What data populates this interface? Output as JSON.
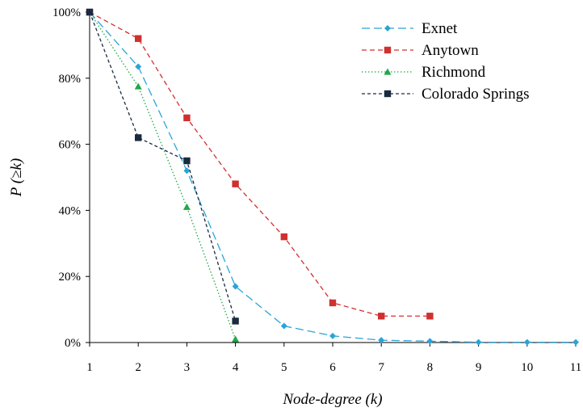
{
  "chart_data": {
    "type": "line",
    "xlabel": "Node-degree (k)",
    "ylabel": "P (≥k)",
    "xlim": [
      1,
      11
    ],
    "ylim": [
      0,
      100
    ],
    "x_ticks": [
      "1",
      "2",
      "3",
      "4",
      "5",
      "6",
      "7",
      "8",
      "9",
      "10",
      "11"
    ],
    "y_ticks": [
      "0%",
      "20%",
      "40%",
      "60%",
      "80%",
      "100%"
    ],
    "y_unit": "%",
    "grid": false,
    "legend_position": "top-right",
    "series": [
      {
        "name": "Exnet",
        "color": "#2aa4d8",
        "marker": "diamond",
        "dash": "long-dash",
        "x": [
          1,
          2,
          3,
          4,
          5,
          6,
          7,
          8,
          9,
          10,
          11
        ],
        "values": [
          100,
          83.5,
          52,
          17,
          5,
          2,
          0.7,
          0.4,
          0.1,
          0.1,
          0.1
        ]
      },
      {
        "name": "Anytown",
        "color": "#d03030",
        "marker": "square",
        "dash": "dash",
        "x": [
          1,
          2,
          3,
          4,
          5,
          6,
          7,
          8
        ],
        "values": [
          100,
          92,
          68,
          48,
          32,
          12,
          8,
          8
        ]
      },
      {
        "name": "Richmond",
        "color": "#20a84a",
        "marker": "triangle",
        "dash": "dot",
        "x": [
          1,
          2,
          3,
          4
        ],
        "values": [
          100,
          77.5,
          41,
          1
        ]
      },
      {
        "name": "Colorado Springs",
        "color": "#1a2a40",
        "marker": "square",
        "dash": "short-dash",
        "x": [
          1,
          2,
          3,
          4
        ],
        "values": [
          100,
          62,
          55,
          6.5
        ]
      }
    ]
  }
}
